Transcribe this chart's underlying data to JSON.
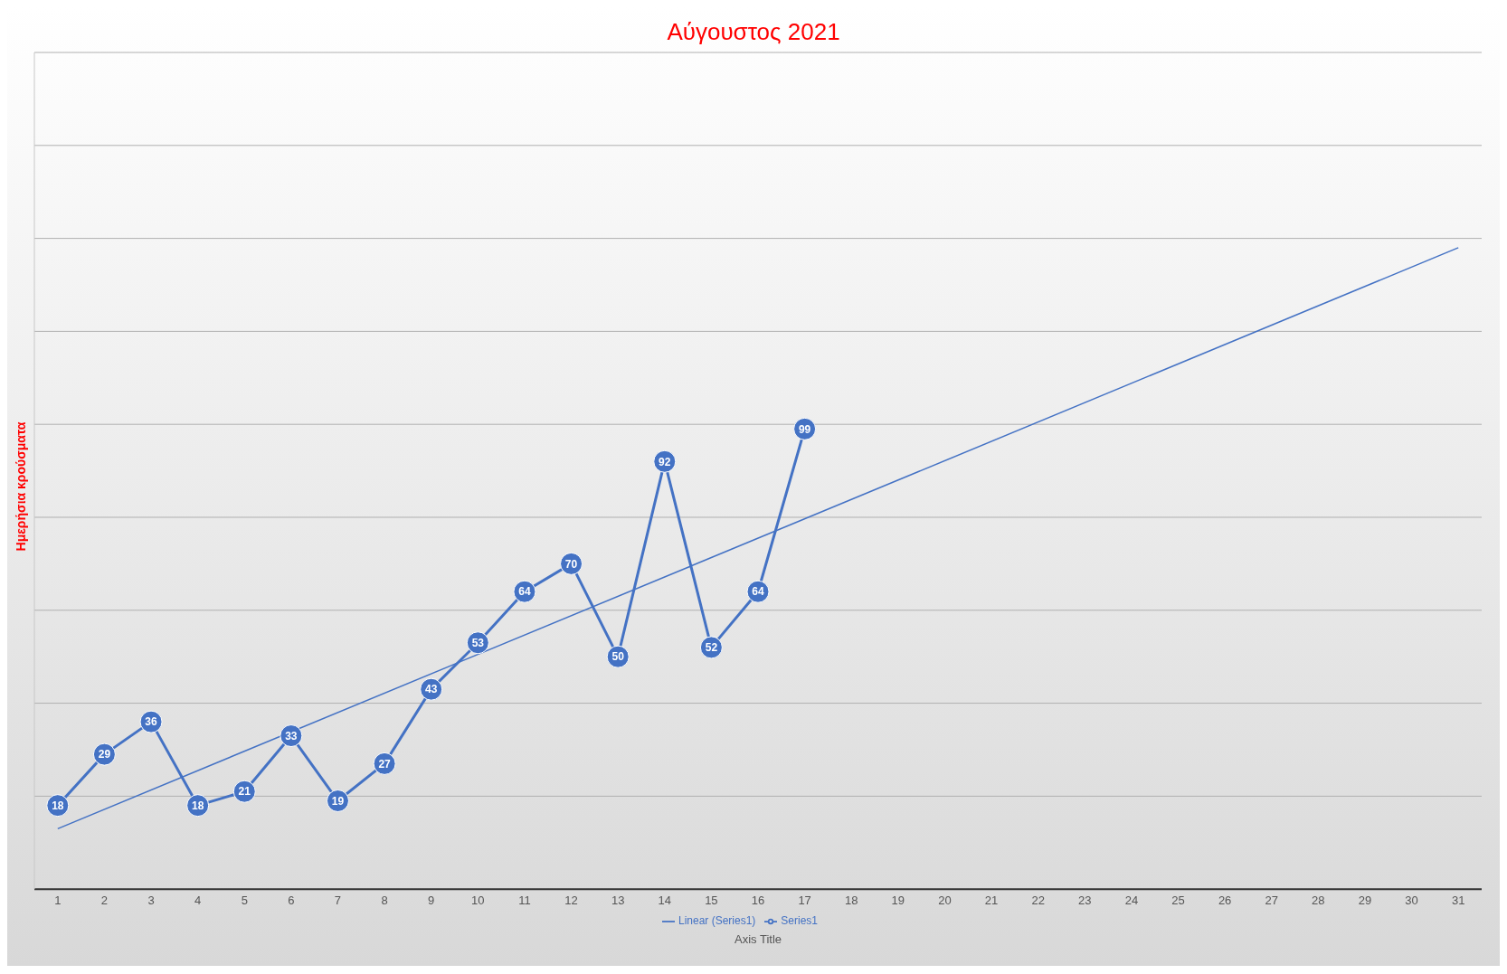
{
  "chart_data": {
    "type": "line",
    "title": "Αύγουστος 2021",
    "ylabel": "Ημερήσια κρούσματα",
    "xlabel": "Axis Title",
    "x": [
      1,
      2,
      3,
      4,
      5,
      6,
      7,
      8,
      9,
      10,
      11,
      12,
      13,
      14,
      15,
      16,
      17
    ],
    "series": [
      {
        "name": "Series1",
        "color": "#4472c4",
        "values": [
          18,
          29,
          36,
          18,
          21,
          33,
          19,
          27,
          43,
          53,
          64,
          70,
          50,
          92,
          52,
          64,
          99
        ],
        "value_labels": [
          "18",
          "29",
          "36",
          "18",
          "21",
          "33",
          "19",
          "27",
          "43",
          "53",
          "64",
          "70",
          "50",
          "92",
          "52",
          "64",
          "99"
        ],
        "marker": "circle"
      },
      {
        "name": "Linear (Series1)",
        "type": "line",
        "color": "#4472c4",
        "x": [
          1,
          31
        ],
        "values": [
          13,
          138
        ],
        "marker": "none"
      }
    ],
    "xlim": [
      0.5,
      31.5
    ],
    "xticks": [
      1,
      2,
      3,
      4,
      5,
      6,
      7,
      8,
      9,
      10,
      11,
      12,
      13,
      14,
      15,
      16,
      17,
      18,
      19,
      20,
      21,
      22,
      23,
      24,
      25,
      26,
      27,
      28,
      29,
      30,
      31
    ],
    "ylim": [
      0,
      180
    ],
    "tick_labels": "x",
    "grid": "y",
    "legend": "bottom"
  }
}
